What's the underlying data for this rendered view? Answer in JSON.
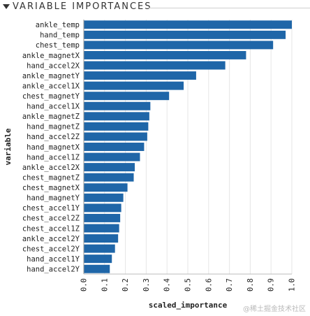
{
  "header": {
    "title": "VARIABLE IMPORTANCES"
  },
  "watermark": "@稀土掘金技术社区",
  "colors": {
    "bar": "#1f66a8",
    "grid": "#e6e6e6",
    "axis": "#222222"
  },
  "chart_data": {
    "type": "bar",
    "orientation": "horizontal",
    "xlabel": "scaled_importance",
    "ylabel": "variable",
    "xlim": [
      0,
      1.0
    ],
    "xticks": [
      "0.0",
      "0.1",
      "0.2",
      "0.3",
      "0.4",
      "0.5",
      "0.6",
      "0.7",
      "0.8",
      "0.9",
      "1.0"
    ],
    "grid": true,
    "categories": [
      "ankle_temp",
      "hand_temp",
      "chest_temp",
      "ankle_magnetX",
      "hand_accel2X",
      "ankle_magnetY",
      "ankle_accel1X",
      "chest_magnetY",
      "hand_accel1X",
      "ankle_magnetZ",
      "hand_magnetZ",
      "hand_accel2Z",
      "hand_magnetX",
      "hand_accel1Z",
      "ankle_accel2X",
      "chest_magnetZ",
      "chest_magnetX",
      "hand_magnetY",
      "chest_accel1Y",
      "chest_accel2Z",
      "chest_accel1Z",
      "ankle_accel2Y",
      "chest_accel2Y",
      "hand_accel1Y",
      "hand_accel2Y"
    ],
    "values": [
      1.0,
      0.97,
      0.91,
      0.78,
      0.68,
      0.54,
      0.48,
      0.41,
      0.32,
      0.315,
      0.31,
      0.305,
      0.29,
      0.27,
      0.245,
      0.24,
      0.21,
      0.19,
      0.18,
      0.175,
      0.17,
      0.165,
      0.15,
      0.135,
      0.125
    ]
  }
}
